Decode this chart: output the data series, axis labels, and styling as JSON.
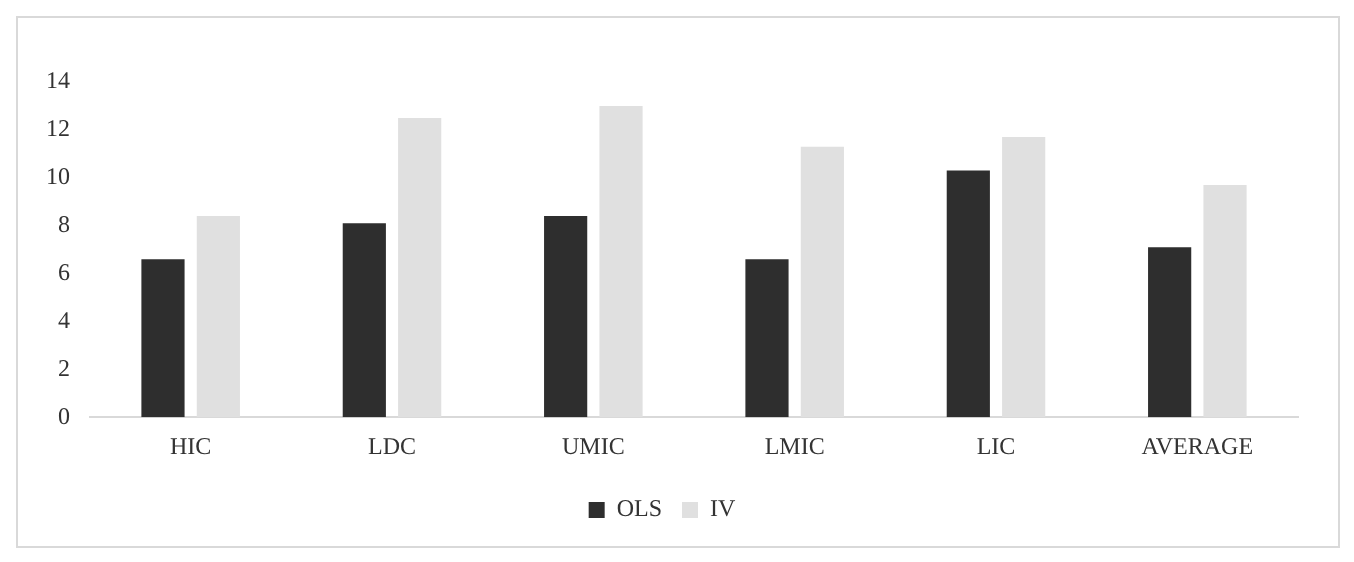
{
  "chart_data": {
    "type": "bar",
    "categories": [
      "HIC",
      "LDC",
      "UMIC",
      "LMIC",
      "LIC",
      "AVERAGE"
    ],
    "series": [
      {
        "name": "OLS",
        "color": "#2e2e2e",
        "values": [
          6.6,
          8.1,
          8.4,
          6.6,
          10.3,
          7.1
        ]
      },
      {
        "name": "IV",
        "color": "#e0e0e0",
        "values": [
          8.4,
          12.5,
          13.0,
          11.3,
          11.7,
          9.7
        ]
      }
    ],
    "ylim": [
      0,
      14
    ],
    "yticks": [
      0,
      2,
      4,
      6,
      8,
      10,
      12,
      14
    ],
    "grid": false,
    "legend": "bottom"
  }
}
